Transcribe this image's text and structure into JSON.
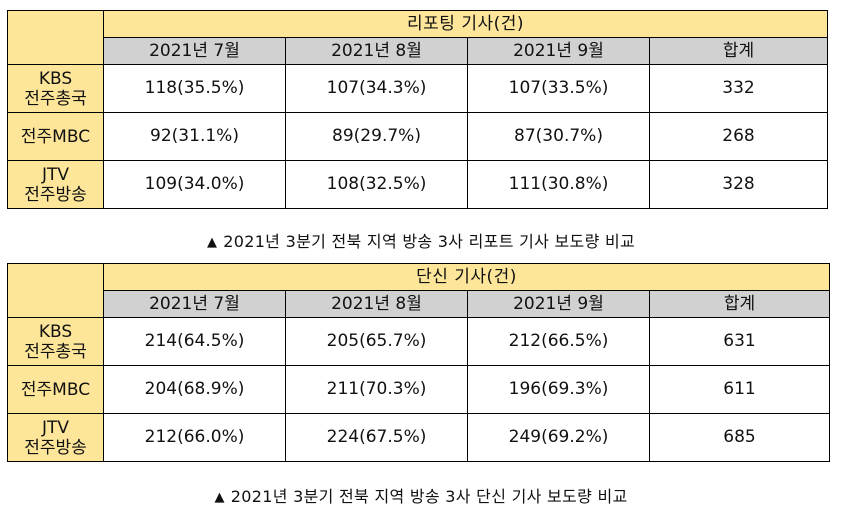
{
  "table1": {
    "title": "리포팅 기사(건)",
    "headers": [
      "2021년 7월",
      "2021년 8월",
      "2021년 9월",
      "합계"
    ],
    "rows": [
      {
        "label_line1": "KBS",
        "label_line2": "전주총국",
        "cells": [
          "118(35.5%)",
          "107(34.3%)",
          "107(33.5%)",
          "332"
        ]
      },
      {
        "label_line1": "전주MBC",
        "label_line2": "",
        "cells": [
          "92(31.1%)",
          "89(29.7%)",
          "87(30.7%)",
          "268"
        ]
      },
      {
        "label_line1": "JTV",
        "label_line2": "전주방송",
        "cells": [
          "109(34.0%)",
          "108(32.5%)",
          "111(30.8%)",
          "328"
        ]
      }
    ],
    "caption": "2021년 3분기 전북 지역 방송 3사 리포트 기사 보도량 비교"
  },
  "table2": {
    "title": "단신 기사(건)",
    "headers": [
      "2021년 7월",
      "2021년 8월",
      "2021년 9월",
      "합계"
    ],
    "rows": [
      {
        "label_line1": "KBS",
        "label_line2": "전주총국",
        "cells": [
          "214(64.5%)",
          "205(65.7%)",
          "212(66.5%)",
          "631"
        ]
      },
      {
        "label_line1": "전주MBC",
        "label_line2": "",
        "cells": [
          "204(68.9%)",
          "211(70.3%)",
          "196(69.3%)",
          "611"
        ]
      },
      {
        "label_line1": "JTV",
        "label_line2": "전주방송",
        "cells": [
          "212(66.0%)",
          "224(67.5%)",
          "249(69.2%)",
          "685"
        ]
      }
    ],
    "caption": "2021년 3분기 전북 지역 방송 3사 단신 기사 보도량 비교"
  },
  "caption_marker": "▲",
  "colors": {
    "header_title_bg": "#fde69a",
    "header_month_bg": "#d1d1d1",
    "border": "#000000"
  }
}
